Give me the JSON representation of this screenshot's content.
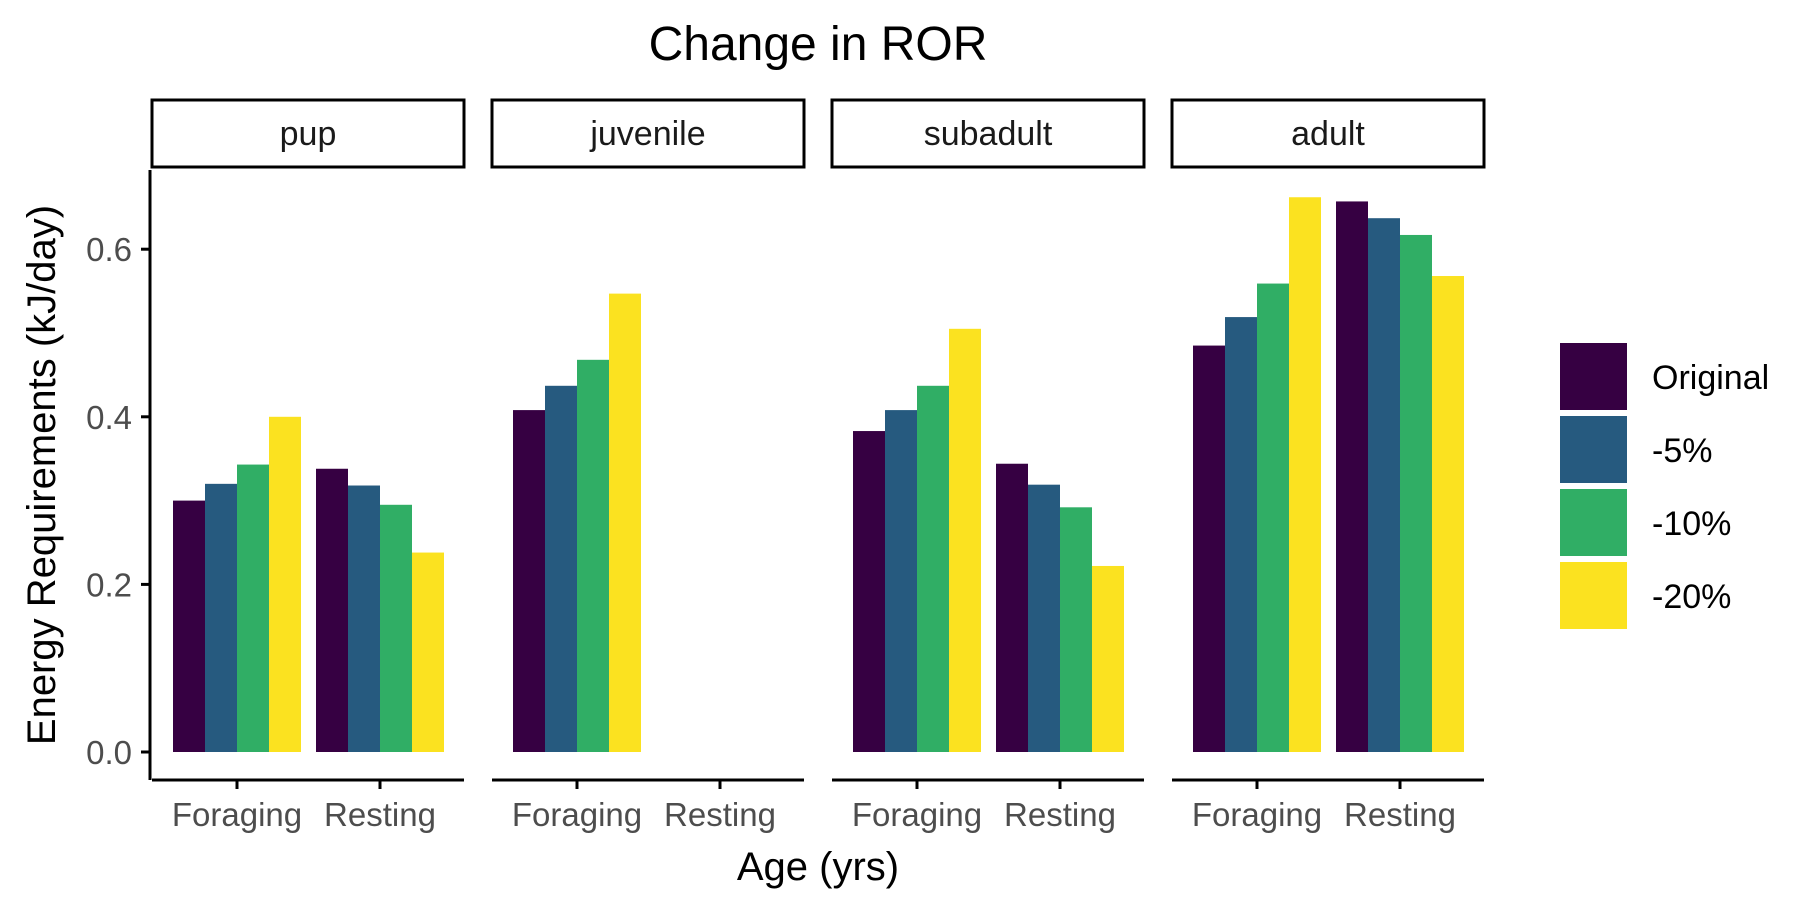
{
  "chart_data": {
    "type": "bar",
    "title": "Change in ROR",
    "xlabel": "Age (yrs)",
    "ylabel": "Energy Requirements (kJ/day)",
    "ylim": [
      0,
      0.7
    ],
    "yticks": [
      "0.0",
      "0.2",
      "0.4",
      "0.6"
    ],
    "ytick_values": [
      0,
      0.2,
      0.4,
      0.6
    ],
    "grid": false,
    "legend_position": "right",
    "categories": [
      "Foraging",
      "Resting"
    ],
    "legend": [
      {
        "name": "Original",
        "color": "#360042"
      },
      {
        "name": "-5%",
        "color": "#265A7F"
      },
      {
        "name": "-10%",
        "color": "#30AE65"
      },
      {
        "name": "-20%",
        "color": "#FBE220"
      }
    ],
    "panels": [
      {
        "label": "pup",
        "values": {
          "Foraging": [
            0.3,
            0.32,
            0.343,
            0.4
          ],
          "Resting": [
            0.338,
            0.318,
            0.295,
            0.238
          ]
        }
      },
      {
        "label": "juvenile",
        "values": {
          "Foraging": [
            0.408,
            0.437,
            0.468,
            0.547
          ]
        }
      },
      {
        "label": "subadult",
        "values": {
          "Foraging": [
            0.383,
            0.408,
            0.437,
            0.505
          ],
          "Resting": [
            0.344,
            0.319,
            0.292,
            0.222
          ]
        }
      },
      {
        "label": "adult",
        "values": {
          "Foraging": [
            0.485,
            0.519,
            0.559,
            0.662
          ],
          "Resting": [
            0.657,
            0.637,
            0.617,
            0.568
          ]
        }
      }
    ]
  }
}
